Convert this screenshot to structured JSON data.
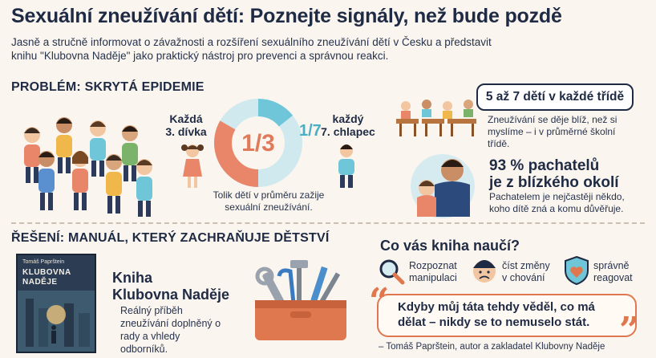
{
  "header": {
    "title": "Sexuální zneužívání dětí: Poznejte signály, než bude pozdě",
    "intro": "Jasně a stručně informovat o závažnosti a rozšíření sexuálního zneužívání dětí v Česku a představit knihu \"Klubovna Naděje\" jako praktický nástroj pro prevenci a správnou reakci."
  },
  "problem": {
    "heading": "PROBLÉM: SKRYTÁ EPIDEMIE",
    "girls_label_1": "Každá",
    "girls_label_2": "3. dívka",
    "boys_label_1": "každý",
    "boys_label_2": "7. chlapec",
    "donut_center": "1/3",
    "donut_side": "1/7",
    "donut_girls_share": 0.3333,
    "donut_boys_share": 0.1429,
    "donut_caption": "Tolik dětí v průměru zažije sexuální zneužívání.",
    "callout": "5 až 7 dětí v každé třídě",
    "class_note": "Zneužívání se děje blíž, než si myslíme – i v průměrné školní třídě.",
    "perpetrator_title_1": "93 % pachatelů",
    "perpetrator_title_2": "je z blízkého okolí",
    "perpetrator_note": "Pachatelem je nejčastěji někdo, koho dítě zná a komu důvěřuje."
  },
  "solution": {
    "heading": "ŘEŠENÍ: MANUÁL, KTERÝ ZACHRAŇUJE DĚTSTVÍ",
    "book_cover_author": "Tomáš Paprštein",
    "book_cover_title_1": "KLUBOVNA",
    "book_cover_title_2": "NADĚJE",
    "book_title_1": "Kniha",
    "book_title_2": "Klubovna Naděje",
    "book_desc": "Reálný příběh zneužívání doplněný o rady a vhledy odborníků.",
    "learn_heading": "Co vás kniha naučí?",
    "learn_items": [
      {
        "line1": "Rozpoznat",
        "line2": "manipulaci",
        "icon": "magnifier-icon"
      },
      {
        "line1": "číst změny",
        "line2": "v chování",
        "icon": "sad-child-icon"
      },
      {
        "line1": "správně",
        "line2": "reagovat",
        "icon": "shield-heart-icon"
      }
    ],
    "quote": "Kdyby můj táta tehdy věděl, co má dělat – nikdy se to nemuselo stát.",
    "quote_author": "– Tomáš Paprštein, autor a zakladatel Klubovny Naděje"
  },
  "colors": {
    "navy": "#1f2a44",
    "coral": "#e9866a",
    "teal": "#6ec6d8",
    "orange": "#e0784f",
    "background": "#faf6ef"
  }
}
